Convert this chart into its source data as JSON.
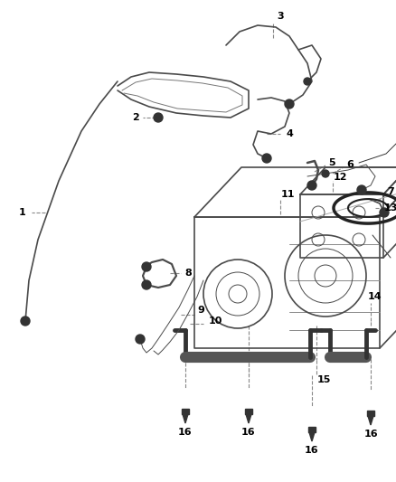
{
  "bg_color": "#ffffff",
  "line_color": "#4a4a4a",
  "label_color": "#000000",
  "figsize": [
    4.38,
    5.33
  ],
  "dpi": 100
}
